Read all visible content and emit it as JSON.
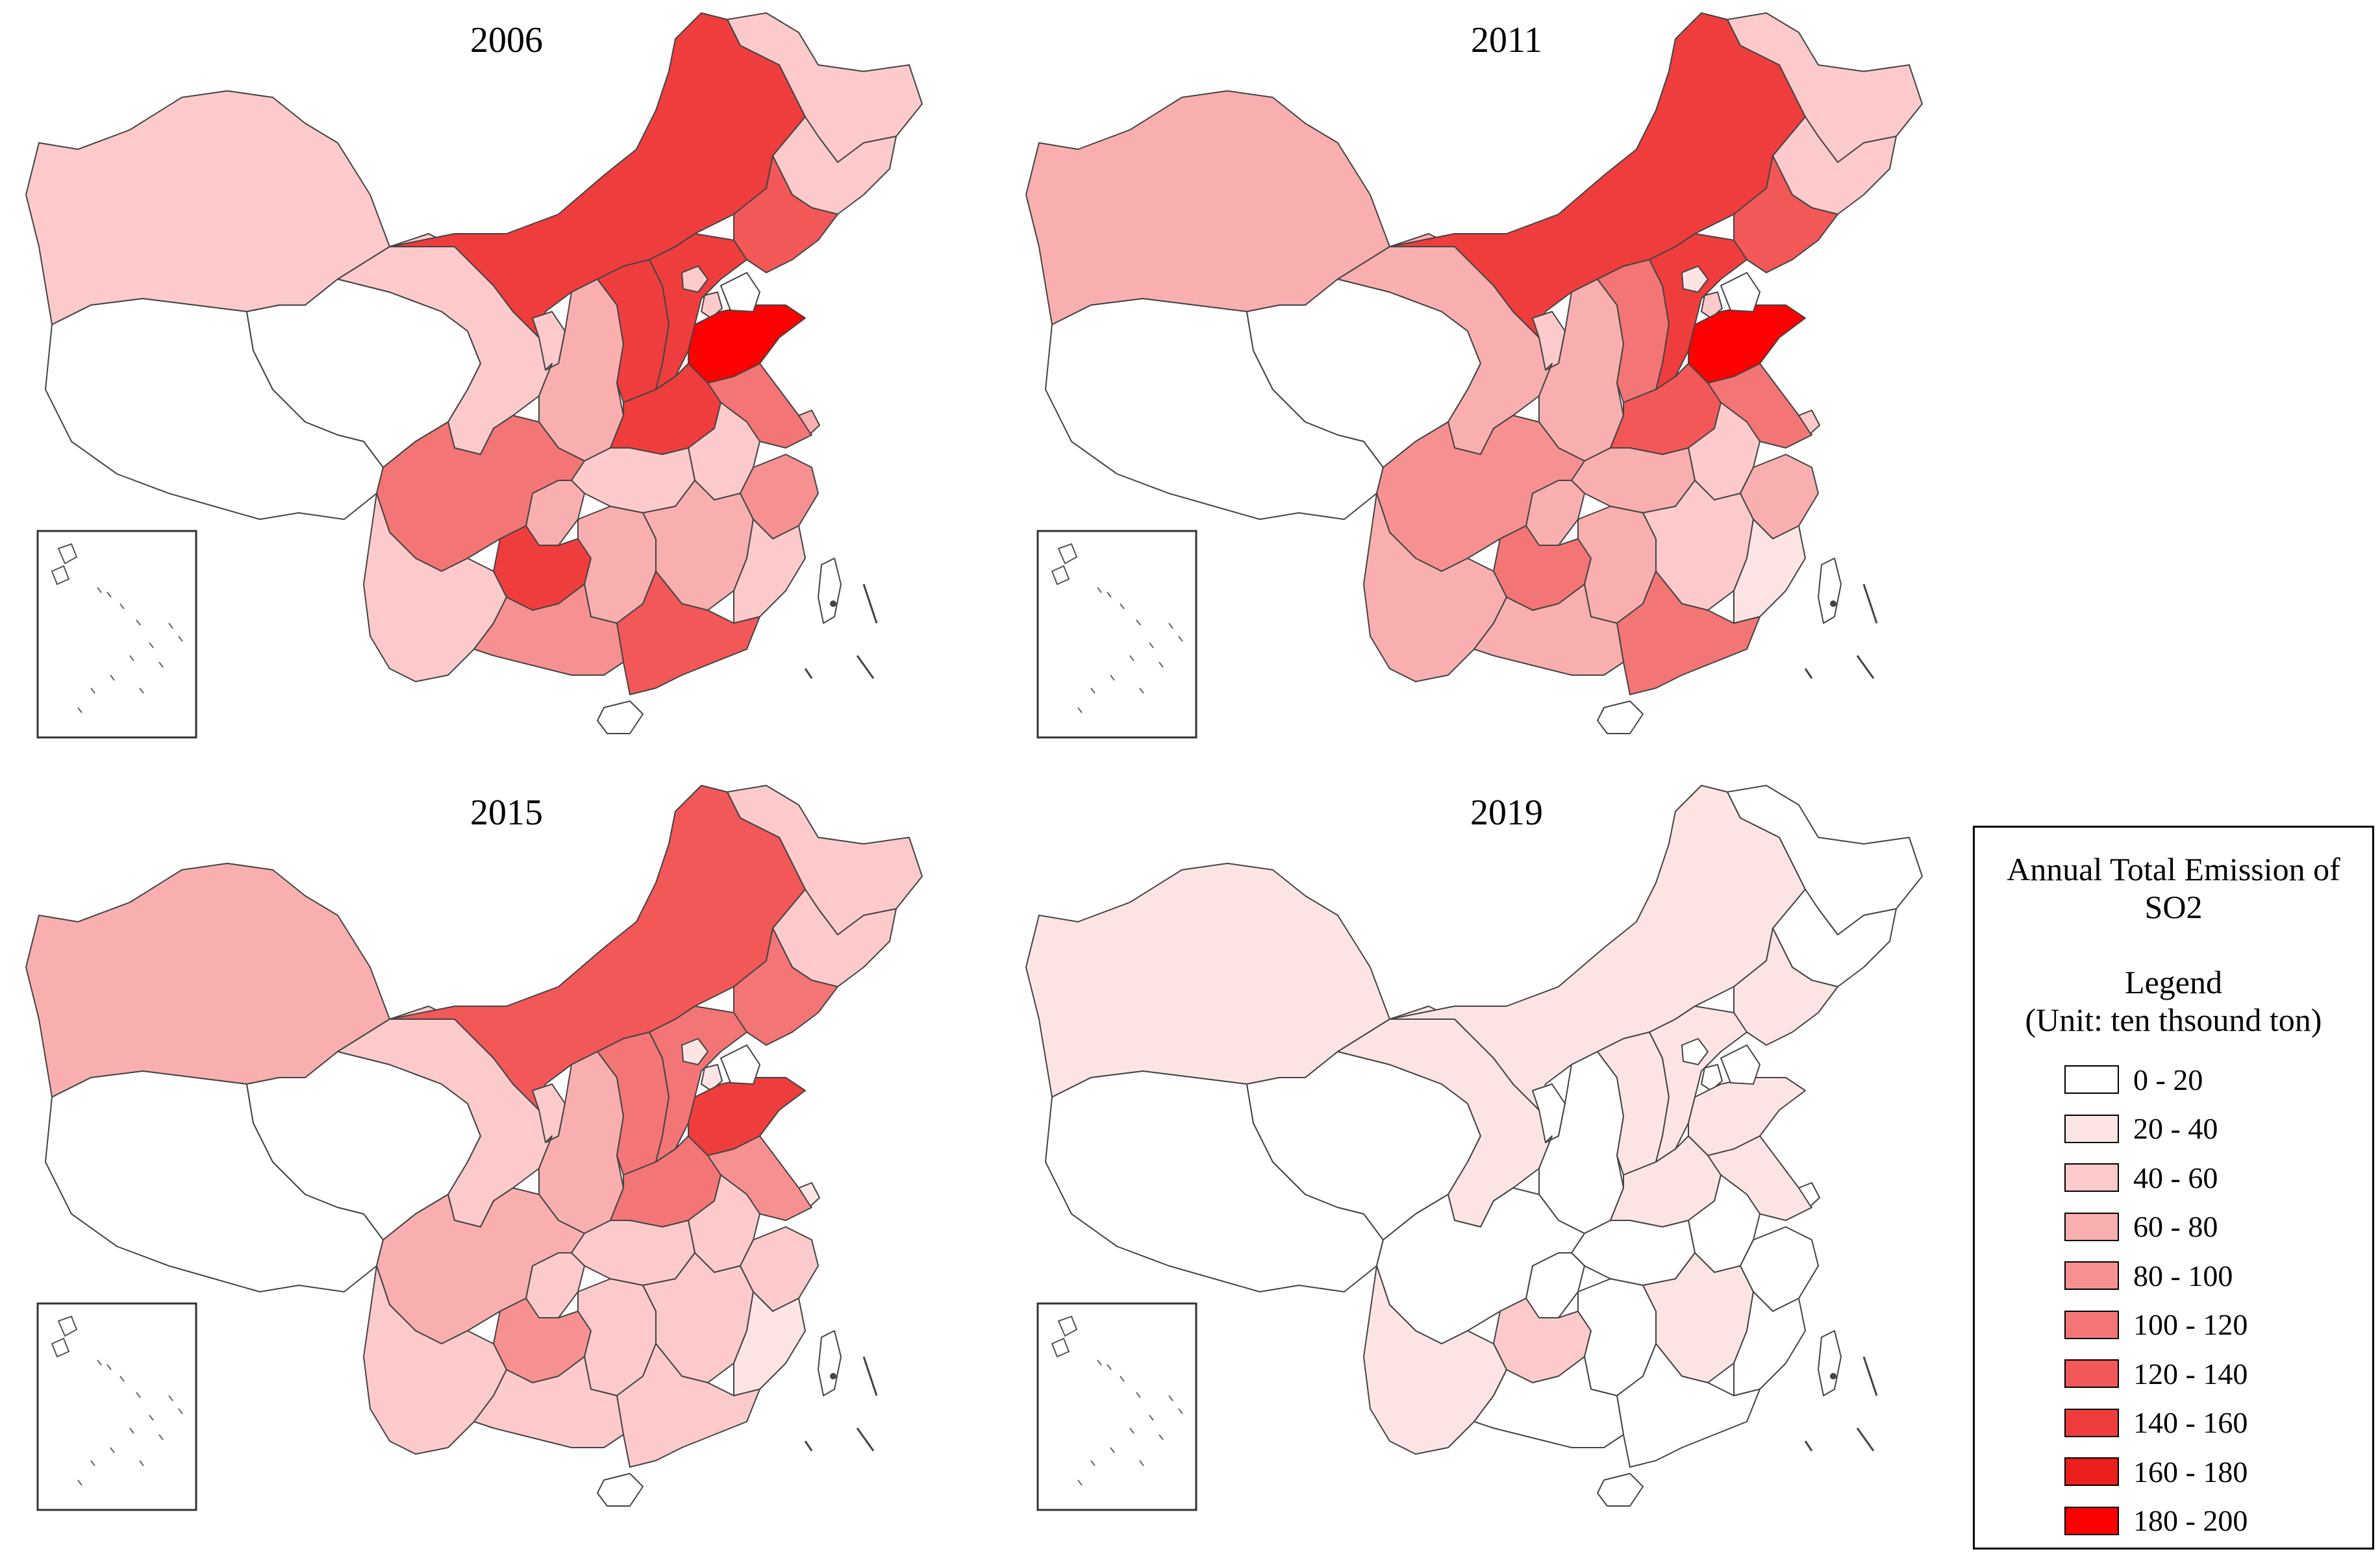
{
  "map": {
    "panels": [
      {
        "title": "2006",
        "fills": {
          "xinjiang": 2,
          "tibet": 0,
          "qinghai": 0,
          "gansu": 2,
          "inner_mongolia": 7,
          "heilongjiang": 2,
          "jilin": 2,
          "liaoning": 6,
          "ningxia": 2,
          "shaanxi": 3,
          "shanxi": 7,
          "hebei": 7,
          "beijing": 2,
          "tianjin": 2,
          "shandong": 9,
          "henan": 7,
          "jiangsu": 5,
          "anhui": 2,
          "hubei": 2,
          "chongqing": 3,
          "sichuan": 5,
          "guizhou": 7,
          "yunnan": 2,
          "hunan": 3,
          "jiangxi": 3,
          "zhejiang": 4,
          "fujian": 2,
          "guangdong": 6,
          "guangxi": 4,
          "hainan": 0,
          "shanghai": 3,
          "taiwan": 0
        }
      },
      {
        "title": "2011",
        "fills": {
          "xinjiang": 3,
          "tibet": 0,
          "qinghai": 0,
          "gansu": 3,
          "inner_mongolia": 7,
          "heilongjiang": 2,
          "jilin": 2,
          "liaoning": 6,
          "ningxia": 2,
          "shaanxi": 3,
          "shanxi": 5,
          "hebei": 7,
          "beijing": 1,
          "tianjin": 2,
          "shandong": 9,
          "henan": 6,
          "jiangsu": 5,
          "anhui": 2,
          "hubei": 3,
          "chongqing": 3,
          "sichuan": 4,
          "guizhou": 5,
          "yunnan": 3,
          "hunan": 3,
          "jiangxi": 2,
          "zhejiang": 3,
          "fujian": 1,
          "guangdong": 5,
          "guangxi": 3,
          "hainan": 0,
          "shanghai": 2,
          "taiwan": 0
        }
      },
      {
        "title": "2015",
        "fills": {
          "xinjiang": 3,
          "tibet": 0,
          "qinghai": 0,
          "gansu": 2,
          "inner_mongolia": 6,
          "heilongjiang": 2,
          "jilin": 2,
          "liaoning": 5,
          "ningxia": 2,
          "shaanxi": 3,
          "shanxi": 5,
          "hebei": 5,
          "beijing": 1,
          "tianjin": 1,
          "shandong": 7,
          "henan": 5,
          "jiangsu": 4,
          "anhui": 2,
          "hubei": 2,
          "chongqing": 2,
          "sichuan": 3,
          "guizhou": 4,
          "yunnan": 2,
          "hunan": 2,
          "jiangxi": 2,
          "zhejiang": 2,
          "fujian": 1,
          "guangdong": 2,
          "guangxi": 2,
          "hainan": 0,
          "shanghai": 1,
          "taiwan": 0
        }
      },
      {
        "title": "2019",
        "fills": {
          "xinjiang": 1,
          "tibet": 0,
          "qinghai": 0,
          "gansu": 1,
          "inner_mongolia": 1,
          "heilongjiang": 0,
          "jilin": 0,
          "liaoning": 1,
          "ningxia": 0,
          "shaanxi": 0,
          "shanxi": 1,
          "hebei": 1,
          "beijing": 0,
          "tianjin": 0,
          "shandong": 1,
          "henan": 1,
          "jiangsu": 1,
          "anhui": 0,
          "hubei": 0,
          "chongqing": 0,
          "sichuan": 0,
          "guizhou": 2,
          "yunnan": 1,
          "hunan": 0,
          "jiangxi": 1,
          "zhejiang": 0,
          "fujian": 0,
          "guangdong": 0,
          "guangxi": 0,
          "hainan": 0,
          "shanghai": 0,
          "taiwan": 0
        }
      }
    ]
  },
  "legend": {
    "title_line1": "Annual Total Emission of",
    "title_line2": "SO2",
    "heading": "Legend",
    "unit": "(Unit: ten thsound ton)",
    "classes": [
      {
        "label": "0 - 20",
        "color": "#ffffff"
      },
      {
        "label": "20 - 40",
        "color": "#fde4e4"
      },
      {
        "label": "40 - 60",
        "color": "#fccaca"
      },
      {
        "label": "60 - 80",
        "color": "#f9afaf"
      },
      {
        "label": "80 - 100",
        "color": "#f79191"
      },
      {
        "label": "100 - 120",
        "color": "#f47575"
      },
      {
        "label": "120 - 140",
        "color": "#f25858"
      },
      {
        "label": "140 - 160",
        "color": "#ef3d3d"
      },
      {
        "label": "160 - 180",
        "color": "#ec1f1f"
      },
      {
        "label": "180 - 200",
        "color": "#ff0000"
      }
    ]
  }
}
